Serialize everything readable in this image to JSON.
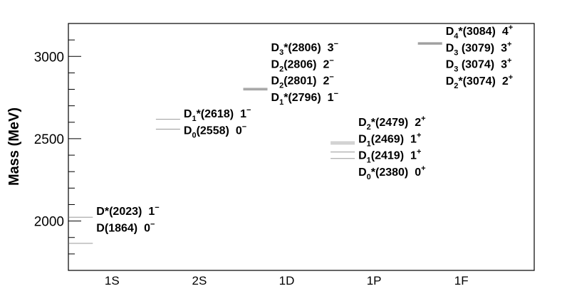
{
  "chart_data": {
    "type": "levels",
    "y_label": "Mass (MeV)",
    "categories": [
      "1S",
      "2S",
      "1D",
      "1P",
      "1F"
    ],
    "ylim": [
      1700,
      3200
    ],
    "yticks": [
      2000,
      2500,
      3000
    ],
    "yminor_ticks": [
      1700,
      1800,
      1900,
      2100,
      2200,
      2300,
      2400,
      2600,
      2700,
      2800,
      2900,
      3100,
      3200
    ],
    "groups": [
      {
        "category": 0,
        "levels": [
          {
            "mass": 2023,
            "name": "D",
            "rest": "*(2023)",
            "j": "1",
            "parity": "−"
          },
          {
            "mass": 1864,
            "name": "D",
            "rest": "(1864)",
            "j": "0",
            "parity": "−"
          }
        ]
      },
      {
        "category": 1,
        "levels": [
          {
            "mass": 2618,
            "name": "D",
            "sub": "1",
            "rest": "*(2618)",
            "j": "1",
            "parity": "−"
          },
          {
            "mass": 2558,
            "name": "D",
            "sub": "0",
            "rest": "(2558)",
            "j": "0",
            "parity": "−"
          }
        ]
      },
      {
        "category": 2,
        "levels": [
          {
            "mass": 2806,
            "name": "D",
            "sub": "3",
            "rest": "*(2806)",
            "j": "3",
            "parity": "−"
          },
          {
            "mass": 2806,
            "name": "D",
            "sub": "2",
            "rest": "(2806)",
            "j": "2",
            "parity": "−"
          },
          {
            "mass": 2801,
            "name": "D",
            "sub": "2",
            "rest": "(2801)",
            "j": "2",
            "parity": "−"
          },
          {
            "mass": 2796,
            "name": "D",
            "sub": "1",
            "rest": "*(2796)",
            "j": "1",
            "parity": "−"
          }
        ]
      },
      {
        "category": 3,
        "levels": [
          {
            "mass": 2479,
            "name": "D",
            "sub": "2",
            "rest": "*(2479)",
            "j": "2",
            "parity": "+"
          },
          {
            "mass": 2469,
            "name": "D",
            "sub": "1",
            "rest": "(2469)",
            "j": "1",
            "parity": "+"
          },
          {
            "mass": 2419,
            "name": "D",
            "sub": "1",
            "rest": "(2419)",
            "j": "1",
            "parity": "+"
          },
          {
            "mass": 2380,
            "name": "D",
            "sub": "0",
            "rest": "*(2380)",
            "j": "0",
            "parity": "+"
          }
        ]
      },
      {
        "category": 4,
        "levels": [
          {
            "mass": 3084,
            "name": "D",
            "sub": "4",
            "rest": "*(3084)",
            "j": "4",
            "parity": "+"
          },
          {
            "mass": 3079,
            "name": "D",
            "sub": "3",
            "rest": " (3079)",
            "j": "3",
            "parity": "+"
          },
          {
            "mass": 3074,
            "name": "D",
            "sub": "3",
            "rest": " (3074)",
            "j": "3",
            "parity": "+"
          },
          {
            "mass": 3074,
            "name": "D",
            "sub": "2",
            "rest": "*(3074)",
            "j": "2",
            "parity": "+"
          }
        ]
      }
    ]
  }
}
